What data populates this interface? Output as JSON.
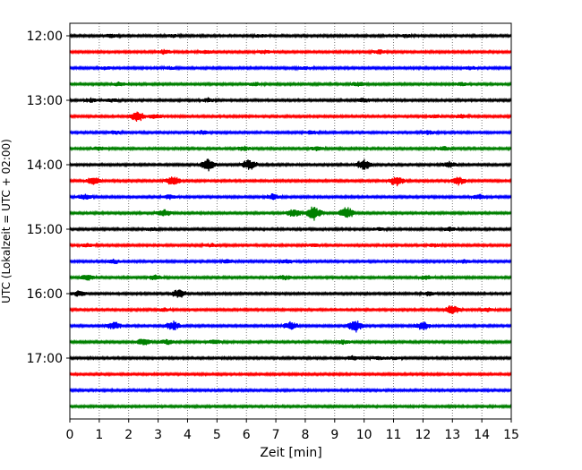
{
  "chart_data": {
    "type": "line",
    "subtype": "helicorder",
    "xlabel": "Zeit  [min]",
    "ylabel": "UTC (Lokalzeit = UTC + 02:00)",
    "xlim": [
      0,
      15
    ],
    "x_ticks": [
      0,
      1,
      2,
      3,
      4,
      5,
      6,
      7,
      8,
      9,
      10,
      11,
      12,
      13,
      14,
      15
    ],
    "x_grid": "dotted vertical lines at each minute",
    "row_interval_minutes": 15,
    "y_ticks": [
      "12:00",
      "13:00",
      "14:00",
      "15:00",
      "16:00",
      "17:00"
    ],
    "colors": [
      "#000000",
      "#ff0000",
      "#0000ff",
      "#008000"
    ],
    "series": [
      {
        "start": "12:00",
        "bursts": [
          [
            1.4,
            0.5
          ],
          [
            3.5,
            0.4
          ],
          [
            6.5,
            0.4
          ],
          [
            11.4,
            0.5
          ]
        ]
      },
      {
        "start": "12:15",
        "bursts": [
          [
            3.2,
            0.7
          ],
          [
            4.6,
            0.5
          ],
          [
            6.6,
            0.5
          ],
          [
            10.5,
            0.6
          ]
        ]
      },
      {
        "start": "12:30",
        "bursts": [
          [
            1.2,
            0.4
          ],
          [
            3.4,
            0.4
          ],
          [
            8.0,
            0.4
          ],
          [
            13.6,
            0.5
          ]
        ]
      },
      {
        "start": "12:45",
        "bursts": [
          [
            1.7,
            0.6
          ],
          [
            6.3,
            0.5
          ],
          [
            9.8,
            0.6
          ],
          [
            13.3,
            0.5
          ]
        ]
      },
      {
        "start": "13:00",
        "bursts": [
          [
            0.7,
            0.6
          ],
          [
            1.4,
            0.5
          ],
          [
            4.7,
            0.6
          ],
          [
            10.0,
            0.6
          ]
        ]
      },
      {
        "start": "13:15",
        "bursts": [
          [
            2.3,
            1.6
          ],
          [
            2.9,
            0.7
          ],
          [
            12.4,
            0.5
          ],
          [
            13.3,
            0.5
          ]
        ]
      },
      {
        "start": "13:30",
        "bursts": [
          [
            1.5,
            0.5
          ],
          [
            4.5,
            0.5
          ],
          [
            8.2,
            0.5
          ],
          [
            12.2,
            0.6
          ]
        ]
      },
      {
        "start": "13:45",
        "bursts": [
          [
            1.0,
            0.6
          ],
          [
            5.9,
            0.7
          ],
          [
            8.4,
            0.6
          ],
          [
            12.7,
            0.6
          ]
        ]
      },
      {
        "start": "14:00",
        "bursts": [
          [
            4.7,
            1.9
          ],
          [
            6.1,
            1.7
          ],
          [
            10.0,
            1.8
          ],
          [
            12.9,
            0.9
          ]
        ]
      },
      {
        "start": "14:15",
        "bursts": [
          [
            0.8,
            1.2
          ],
          [
            3.5,
            1.5
          ],
          [
            11.1,
            1.5
          ],
          [
            13.2,
            1.4
          ]
        ]
      },
      {
        "start": "14:30",
        "bursts": [
          [
            0.5,
            0.8
          ],
          [
            3.4,
            0.7
          ],
          [
            6.9,
            0.9
          ],
          [
            13.9,
            0.8
          ]
        ]
      },
      {
        "start": "14:45",
        "bursts": [
          [
            3.2,
            1.0
          ],
          [
            7.6,
            1.4
          ],
          [
            8.3,
            2.3
          ],
          [
            9.4,
            2.0
          ]
        ]
      },
      {
        "start": "15:00",
        "bursts": [
          [
            2.8,
            0.5
          ],
          [
            10.5,
            0.4
          ],
          [
            12.9,
            0.6
          ]
        ]
      },
      {
        "start": "15:15",
        "bursts": [
          [
            0.6,
            0.5
          ],
          [
            4.8,
            0.5
          ],
          [
            8.3,
            0.5
          ],
          [
            12.4,
            0.5
          ]
        ]
      },
      {
        "start": "15:30",
        "bursts": [
          [
            1.5,
            0.6
          ],
          [
            5.4,
            0.5
          ],
          [
            7.4,
            0.6
          ],
          [
            13.4,
            0.5
          ]
        ]
      },
      {
        "start": "15:45",
        "bursts": [
          [
            0.6,
            0.9
          ],
          [
            2.9,
            0.7
          ],
          [
            7.3,
            0.7
          ],
          [
            12.1,
            0.7
          ]
        ]
      },
      {
        "start": "16:00",
        "bursts": [
          [
            0.3,
            0.8
          ],
          [
            3.7,
            1.4
          ],
          [
            12.2,
            0.6
          ]
        ]
      },
      {
        "start": "16:15",
        "bursts": [
          [
            3.2,
            0.5
          ],
          [
            13.0,
            1.6
          ],
          [
            14.2,
            0.6
          ]
        ]
      },
      {
        "start": "16:30",
        "bursts": [
          [
            1.5,
            1.2
          ],
          [
            3.5,
            1.5
          ],
          [
            7.5,
            1.1
          ],
          [
            9.7,
            1.9
          ],
          [
            12.0,
            1.3
          ]
        ]
      },
      {
        "start": "16:45",
        "bursts": [
          [
            2.5,
            1.1
          ],
          [
            3.3,
            0.8
          ],
          [
            4.9,
            0.7
          ],
          [
            9.3,
            0.6
          ]
        ]
      },
      {
        "start": "17:00",
        "bursts": [
          [
            9.6,
            0.6
          ],
          [
            10.5,
            0.5
          ],
          [
            11.0,
            0.4
          ]
        ]
      },
      {
        "start": "17:15",
        "bursts": []
      },
      {
        "start": "17:30",
        "bursts": []
      },
      {
        "start": "17:45",
        "bursts": []
      }
    ]
  }
}
